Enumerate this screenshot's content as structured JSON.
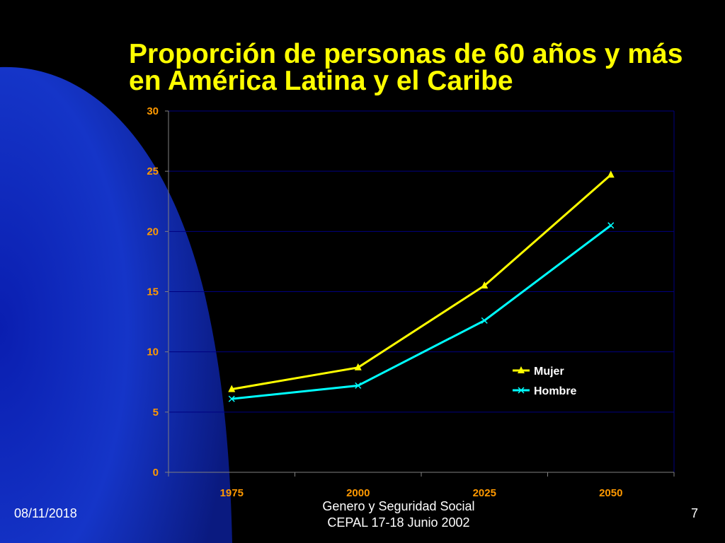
{
  "slide": {
    "title": "Proporción de personas de 60 años y más en América Latina y el Caribe",
    "footer_date": "08/11/2018",
    "footer_line1": "Genero y Seguridad Social",
    "footer_line2": "CEPAL 17-18 Junio 2002",
    "page_number": "7"
  },
  "colors": {
    "background": "#000000",
    "title": "#ffff00",
    "tick_labels": "#ff9900",
    "mujer": "#ffff00",
    "hombre": "#00ffff",
    "gridline": "#000080",
    "axis": "#808080",
    "text": "#ffffff"
  },
  "chart_data": {
    "type": "line",
    "categories": [
      "1975",
      "2000",
      "2025",
      "2050"
    ],
    "ylim": [
      0,
      30
    ],
    "yticks": [
      0,
      5,
      10,
      15,
      20,
      25,
      30
    ],
    "grid": true,
    "legend_position": "right",
    "series": [
      {
        "name": "Mujer",
        "values": [
          6.9,
          8.7,
          15.5,
          24.7
        ],
        "marker": "triangle"
      },
      {
        "name": "Hombre",
        "values": [
          6.1,
          7.2,
          12.6,
          20.5
        ],
        "marker": "x"
      }
    ]
  }
}
